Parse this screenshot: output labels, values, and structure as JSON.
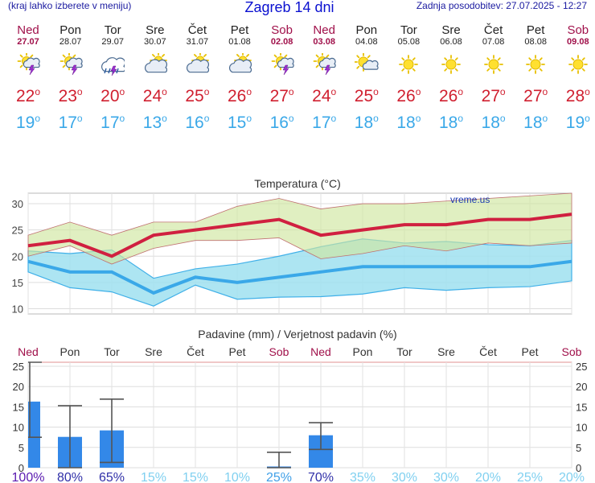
{
  "header": {
    "hint": "(kraj lahko izberete v meniju)",
    "title": "Zagreb 14 dni",
    "updated": "Zadnja posodobitev: 27.07.2025 - 12:27"
  },
  "days": [
    {
      "name": "Ned",
      "date": "27.07",
      "weekend": true,
      "icon": "sun-cloud-lightning-icon",
      "max": "22",
      "min": "19"
    },
    {
      "name": "Pon",
      "date": "28.07",
      "weekend": false,
      "icon": "sun-cloud-lightning-icon",
      "max": "23",
      "min": "17"
    },
    {
      "name": "Tor",
      "date": "29.07",
      "weekend": false,
      "icon": "cloud-rain-lightning-icon",
      "max": "20",
      "min": "17"
    },
    {
      "name": "Sre",
      "date": "30.07",
      "weekend": false,
      "icon": "sun-cloud-icon",
      "max": "24",
      "min": "13"
    },
    {
      "name": "Čet",
      "date": "31.07",
      "weekend": false,
      "icon": "sun-cloud-icon",
      "max": "25",
      "min": "16"
    },
    {
      "name": "Pet",
      "date": "01.08",
      "weekend": false,
      "icon": "sun-cloud-icon",
      "max": "26",
      "min": "15"
    },
    {
      "name": "Sob",
      "date": "02.08",
      "weekend": true,
      "icon": "sun-cloud-lightning-icon",
      "max": "27",
      "min": "16"
    },
    {
      "name": "Ned",
      "date": "03.08",
      "weekend": true,
      "icon": "sun-cloud-lightning-icon",
      "max": "24",
      "min": "17"
    },
    {
      "name": "Pon",
      "date": "04.08",
      "weekend": false,
      "icon": "sun-small-cloud-icon",
      "max": "25",
      "min": "18"
    },
    {
      "name": "Tor",
      "date": "05.08",
      "weekend": false,
      "icon": "sun-icon",
      "max": "26",
      "min": "18"
    },
    {
      "name": "Sre",
      "date": "06.08",
      "weekend": false,
      "icon": "sun-icon",
      "max": "26",
      "min": "18"
    },
    {
      "name": "Čet",
      "date": "07.08",
      "weekend": false,
      "icon": "sun-icon",
      "max": "27",
      "min": "18"
    },
    {
      "name": "Pet",
      "date": "08.08",
      "weekend": false,
      "icon": "sun-icon",
      "max": "27",
      "min": "18"
    },
    {
      "name": "Sob",
      "date": "09.08",
      "weekend": true,
      "icon": "sun-icon",
      "max": "28",
      "min": "19"
    }
  ],
  "colors": {
    "weekend": "#a0104a",
    "weekday": "#222222",
    "max": "#d02030",
    "min": "#3aa8e8",
    "max_band": "#cfe7a0",
    "min_band": "#9fe0f0",
    "precip_bar": "#3388e8"
  },
  "chart_data": [
    {
      "type": "line",
      "title": "Temperatura (°C)",
      "watermark": "vreme.us",
      "ylim": [
        9,
        32
      ],
      "yticks": [
        10,
        15,
        20,
        25,
        30
      ],
      "x": [
        "27.07",
        "28.07",
        "29.07",
        "30.07",
        "31.07",
        "01.08",
        "02.08",
        "03.08",
        "04.08",
        "05.08",
        "06.08",
        "07.08",
        "08.08",
        "09.08"
      ],
      "series": [
        {
          "name": "max",
          "values": [
            22,
            23,
            20,
            24,
            25,
            26,
            27,
            24,
            25,
            26,
            26,
            27,
            27,
            28
          ],
          "band_low": [
            20,
            22,
            18.5,
            21.5,
            23,
            23,
            23.5,
            19.5,
            20.5,
            22,
            21,
            22.5,
            22,
            22.5
          ],
          "band_high": [
            24,
            26.5,
            24,
            26.5,
            26.5,
            29.5,
            31,
            29,
            30,
            30,
            30.5,
            31,
            31.5,
            32
          ]
        },
        {
          "name": "min",
          "values": [
            19,
            17,
            17,
            13,
            16,
            15,
            16,
            17,
            18,
            18,
            18,
            18,
            18,
            19
          ],
          "band_low": [
            17,
            14,
            13.2,
            10.5,
            14.5,
            11.8,
            12.2,
            12.3,
            12.8,
            14,
            13.5,
            14,
            14.2,
            15.3
          ],
          "band_high": [
            21,
            20.5,
            21.2,
            15.8,
            17.6,
            18.5,
            20,
            21.8,
            23.3,
            22.5,
            22.8,
            22.2,
            22,
            23
          ]
        }
      ]
    },
    {
      "type": "bar",
      "title": "Padavine (mm) / Verjetnost padavin (%)",
      "ylim": [
        0,
        26
      ],
      "yticks": [
        0,
        5,
        10,
        15,
        20,
        25
      ],
      "categories": [
        "Ned",
        "Pon",
        "Tor",
        "Sre",
        "Čet",
        "Pet",
        "Sob",
        "Ned",
        "Pon",
        "Tor",
        "Sre",
        "Čet",
        "Pet",
        "Sob"
      ],
      "values": [
        16.3,
        7.6,
        9.2,
        0,
        0,
        0,
        0.3,
        8.0,
        0,
        0,
        0,
        0,
        0,
        0
      ],
      "err_low": [
        7.5,
        0,
        1.3,
        null,
        null,
        null,
        0,
        4.5,
        null,
        null,
        null,
        null,
        null,
        null
      ],
      "err_high": [
        26,
        15.3,
        16.9,
        null,
        null,
        null,
        3.8,
        11.1,
        null,
        null,
        null,
        null,
        null,
        null
      ],
      "probability": [
        "100%",
        "80%",
        "65%",
        "15%",
        "15%",
        "10%",
        "25%",
        "70%",
        "35%",
        "30%",
        "30%",
        "20%",
        "25%",
        "20%"
      ],
      "probability_colors": [
        "#5a1ab0",
        "#3030a8",
        "#3030a8",
        "#80d0f0",
        "#80d0f0",
        "#80d0f0",
        "#40a0e8",
        "#3030a8",
        "#80d0f0",
        "#80d0f0",
        "#80d0f0",
        "#80d0f0",
        "#80d0f0",
        "#80d0f0"
      ]
    }
  ]
}
